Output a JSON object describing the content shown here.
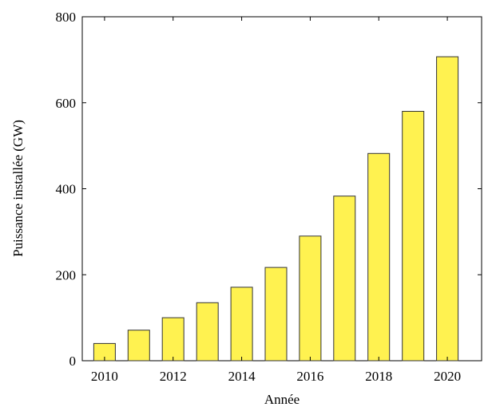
{
  "chart_data": {
    "type": "bar",
    "title": "",
    "xlabel": "Année",
    "ylabel": "Puissance installée (GW)",
    "categories": [
      2010,
      2011,
      2012,
      2013,
      2014,
      2015,
      2016,
      2017,
      2018,
      2019,
      2020
    ],
    "values": [
      40,
      71,
      100,
      135,
      171,
      217,
      290,
      383,
      482,
      580,
      707
    ],
    "ylim": [
      0,
      800
    ],
    "yticks": [
      0,
      200,
      400,
      600,
      800
    ],
    "xticks": [
      2010,
      2012,
      2014,
      2016,
      2018,
      2020
    ],
    "xtick_labels": [
      "2010",
      "2012",
      "2014",
      "2016",
      "2018",
      "2020"
    ],
    "ytick_labels": [
      "0",
      "200",
      "400",
      "600",
      "800"
    ],
    "bar_color": "#fff250",
    "bar_edge_color": "#333333",
    "grid": false,
    "legend": "none"
  }
}
